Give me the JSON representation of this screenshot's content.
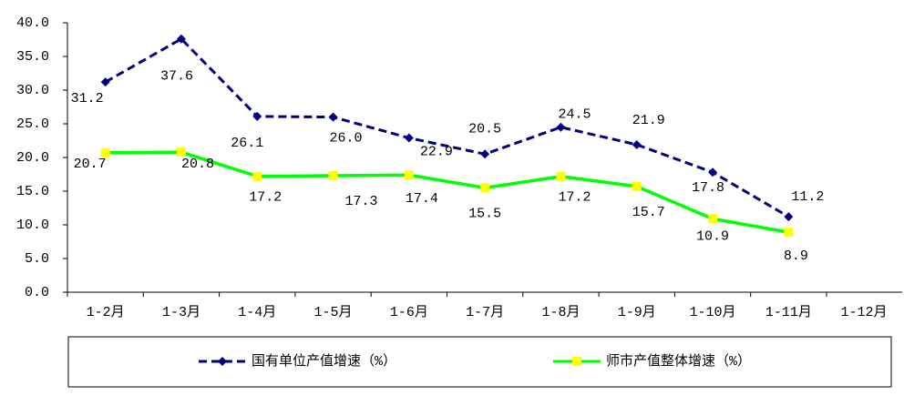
{
  "chart_data": {
    "type": "line",
    "categories": [
      "1-2月",
      "1-3月",
      "1-4月",
      "1-5月",
      "1-6月",
      "1-7月",
      "1-8月",
      "1-9月",
      "1-10月",
      "1-11月",
      "1-12月"
    ],
    "series": [
      {
        "name": "国有单位产值增速（%）",
        "color": "#000080",
        "marker": "diamond",
        "dashed": true,
        "values": [
          31.2,
          37.6,
          26.1,
          26.0,
          22.9,
          20.5,
          24.5,
          21.9,
          17.8,
          11.2,
          null
        ],
        "value_labels": [
          "31.2",
          "37.6",
          "26.1",
          "26.0",
          "22.9",
          "20.5",
          "24.5",
          "21.9",
          "17.8",
          "11.2",
          null
        ]
      },
      {
        "name": "师市产值整体增速（%）",
        "color": "#00ff00",
        "marker_color": "#ffff00",
        "marker": "square",
        "dashed": false,
        "values": [
          20.7,
          20.8,
          17.2,
          17.3,
          17.4,
          15.5,
          17.2,
          15.7,
          10.9,
          8.9,
          null
        ],
        "value_labels": [
          "20.7",
          "20.8",
          "17.2",
          "17.3",
          "17.4",
          "15.5",
          "17.2",
          "15.7",
          "10.9",
          "8.9",
          null
        ]
      }
    ],
    "ylim": [
      0,
      40
    ],
    "yticks": [
      {
        "value": 0,
        "label": "0.0"
      },
      {
        "value": 5,
        "label": "5.0"
      },
      {
        "value": 10,
        "label": "10.0"
      },
      {
        "value": 15,
        "label": "15.0"
      },
      {
        "value": 20,
        "label": "20.0"
      },
      {
        "value": 25,
        "label": "25.0"
      },
      {
        "value": 30,
        "label": "30.0"
      },
      {
        "value": 35,
        "label": "35.0"
      },
      {
        "value": 40,
        "label": "40.0"
      }
    ],
    "legend": "bottom"
  }
}
